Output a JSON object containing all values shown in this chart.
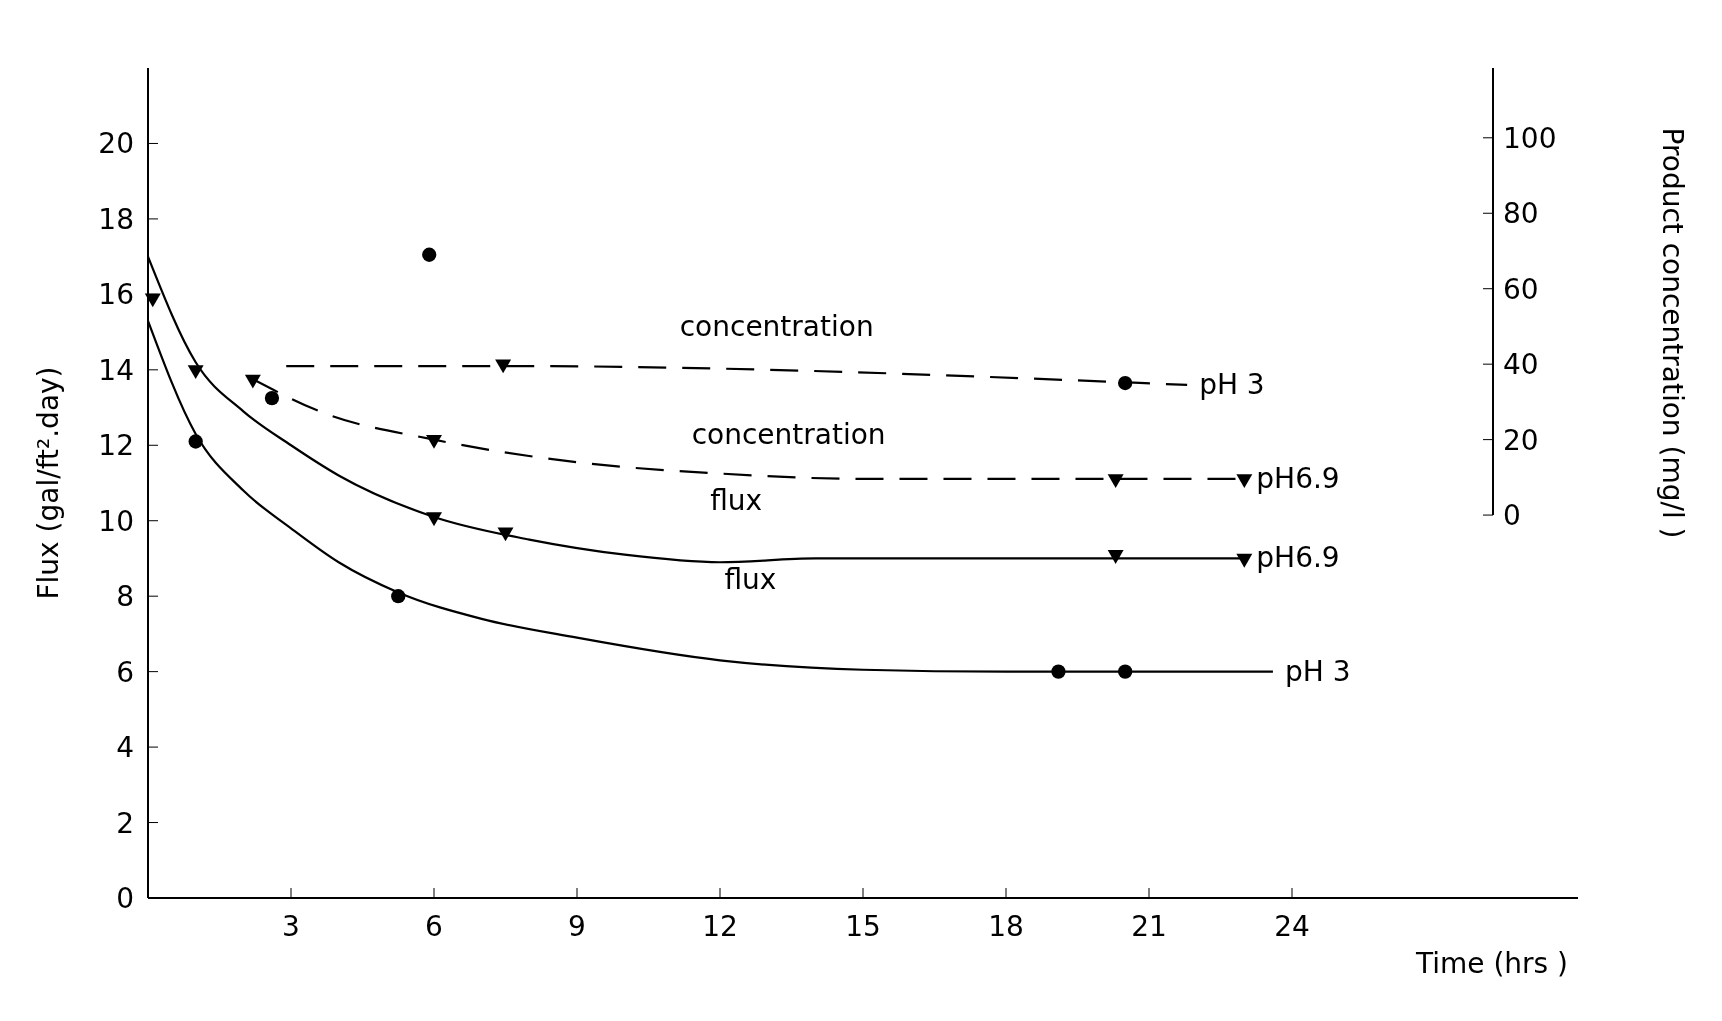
{
  "chart_data": {
    "type": "line",
    "xlabel": "Time (hrs )",
    "ylabel": "Flux (gal/ft².day)",
    "y2label": "Product concentration (mg/l )",
    "xlim": [
      0,
      30
    ],
    "xticks": [
      3,
      6,
      9,
      12,
      15,
      18,
      21,
      24
    ],
    "ylim": [
      0,
      22
    ],
    "yticks": [
      0,
      2,
      4,
      6,
      8,
      10,
      12,
      14,
      16,
      18,
      20
    ],
    "y2lim": [
      -101.5,
      118.5
    ],
    "y2ticks": [
      0,
      20,
      40,
      60,
      80,
      100
    ],
    "grid": false,
    "series": [
      {
        "name": "pH6.9",
        "color": "#000000",
        "line_style": "solid",
        "marker": "none",
        "x": [
          0,
          1,
          2,
          3,
          4,
          6,
          8,
          10,
          12,
          14,
          18,
          23
        ],
        "values": [
          17,
          14.2,
          12.9,
          12,
          11.2,
          10.1,
          9.5,
          9.1,
          8.9,
          9,
          9,
          9
        ]
      },
      {
        "type": "scatter",
        "color": "#000000",
        "marker": "triangle",
        "x": [
          0.1,
          1,
          6,
          7.5,
          20.3,
          23
        ],
        "values": [
          15.9,
          14,
          10.1,
          9.7,
          9.1,
          9
        ]
      },
      {
        "name": "pH 3",
        "color": "#000000",
        "line_style": "solid",
        "marker": "none",
        "x": [
          0,
          1,
          2,
          3,
          4,
          5.25,
          7,
          9,
          12,
          15,
          18,
          23.6
        ],
        "values": [
          15.3,
          12.3,
          10.8,
          9.8,
          8.9,
          8.1,
          7.4,
          6.9,
          6.3,
          6.05,
          6,
          6
        ]
      },
      {
        "type": "scatter",
        "color": "#000000",
        "marker": "circle",
        "x": [
          1,
          5.25,
          19.1,
          20.5
        ],
        "values": [
          12.1,
          8,
          6,
          6
        ]
      },
      {
        "name": "pH 3",
        "axis": "y2",
        "color": "#000000",
        "line_style": "dashed",
        "marker": "none",
        "x": [
          2.9,
          7.45,
          21.8
        ],
        "values": [
          39.5,
          39.5,
          34.5
        ]
      },
      {
        "type": "scatter",
        "axis": "y2",
        "color": "#000000",
        "marker": "triangle",
        "x": [
          7.45
        ],
        "values": [
          40
        ]
      },
      {
        "type": "scatter",
        "axis": "y2",
        "color": "#000000",
        "marker": "circle",
        "x": [
          2.6,
          5.9,
          20.5
        ],
        "values": [
          31,
          69,
          35
        ]
      },
      {
        "name": "pH6.9",
        "axis": "y2",
        "color": "#000000",
        "line_style": "dashed",
        "marker": "none",
        "x": [
          2.2,
          3.7,
          6,
          9,
          12,
          15,
          20.3,
          23
        ],
        "values": [
          36,
          27,
          20,
          14,
          11,
          9.6,
          9.6,
          9.6
        ]
      },
      {
        "type": "scatter",
        "axis": "y2",
        "color": "#000000",
        "marker": "triangle",
        "x": [
          2.2,
          6,
          20.3,
          23
        ],
        "values": [
          36,
          20,
          9.6,
          9.6
        ]
      }
    ],
    "annotations": [
      "flux",
      "flux",
      "concentration",
      "concentration"
    ]
  }
}
